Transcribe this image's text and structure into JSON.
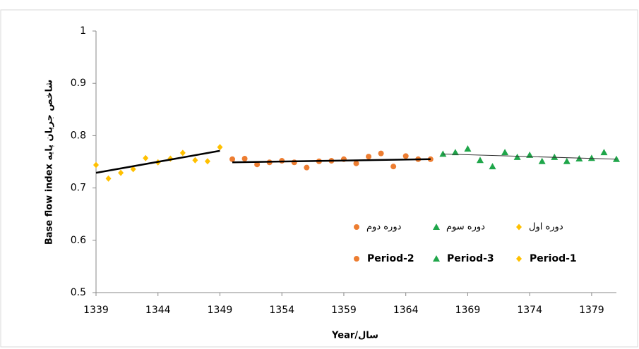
{
  "chart_data": {
    "type": "scatter",
    "x_label": "Year/سال",
    "y_label": "Base flow index  شاخص جریان پایه",
    "xlim": [
      1339,
      1381
    ],
    "xticks": [
      1339,
      1344,
      1349,
      1354,
      1359,
      1364,
      1369,
      1374,
      1379
    ],
    "ylim": [
      0.5,
      1
    ],
    "yticks": [
      0.5,
      0.6,
      0.7,
      0.8,
      0.9,
      1
    ],
    "series": [
      {
        "name": "Period-1",
        "name_fa": "دوره اول",
        "color": "#ffc000",
        "marker": "diamond",
        "x": [
          1339,
          1340,
          1341,
          1342,
          1343,
          1344,
          1345,
          1346,
          1347,
          1348,
          1349
        ],
        "values": [
          0.744,
          0.718,
          0.729,
          0.736,
          0.757,
          0.749,
          0.756,
          0.767,
          0.753,
          0.751,
          0.778
        ],
        "trend": {
          "x": [
            1339,
            1349
          ],
          "values": [
            0.729,
            0.771
          ],
          "color": "#000000",
          "width": 2.5
        }
      },
      {
        "name": "Period-2",
        "name_fa": "دوره دوم",
        "color": "#ed7d31",
        "marker": "circle",
        "x": [
          1350,
          1351,
          1352,
          1353,
          1354,
          1355,
          1356,
          1357,
          1358,
          1359,
          1360,
          1361,
          1362,
          1363,
          1364,
          1365,
          1366
        ],
        "values": [
          0.755,
          0.756,
          0.745,
          0.749,
          0.752,
          0.749,
          0.739,
          0.751,
          0.752,
          0.755,
          0.747,
          0.76,
          0.766,
          0.741,
          0.761,
          0.755,
          0.755
        ],
        "trend": {
          "x": [
            1350,
            1366
          ],
          "values": [
            0.749,
            0.755
          ],
          "color": "#000000",
          "width": 2.5
        }
      },
      {
        "name": "Period-3",
        "name_fa": "دوره سوم",
        "color": "#1fa64a",
        "marker": "triangle",
        "x": [
          1367,
          1368,
          1369,
          1370,
          1371,
          1372,
          1373,
          1374,
          1375,
          1376,
          1377,
          1378,
          1379,
          1380,
          1381
        ],
        "values": [
          0.765,
          0.768,
          0.775,
          0.753,
          0.741,
          0.768,
          0.759,
          0.763,
          0.751,
          0.759,
          0.751,
          0.756,
          0.757,
          0.768,
          0.755
        ],
        "trend": {
          "x": [
            1367,
            1381
          ],
          "values": [
            0.765,
            0.755
          ],
          "color": "#333333",
          "width": 1
        }
      }
    ]
  }
}
